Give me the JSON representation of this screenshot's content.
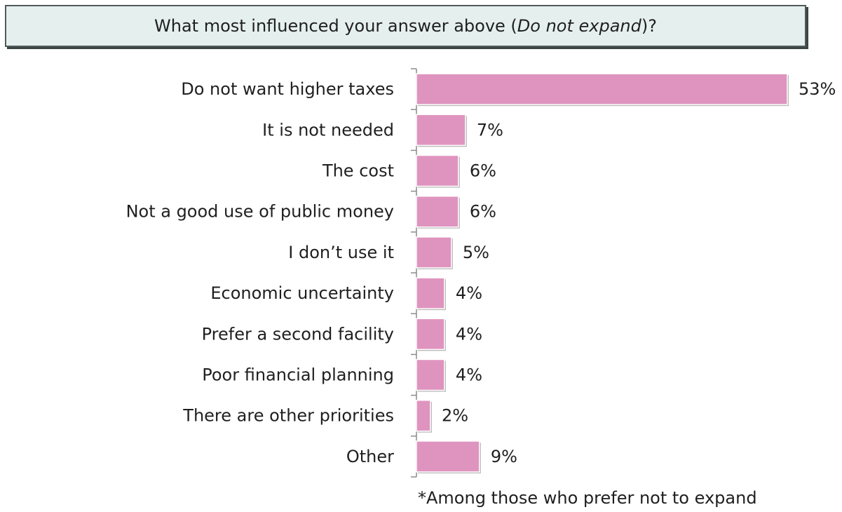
{
  "title": {
    "prefix": "What most influenced your answer above (",
    "emphasis": "Do not expand",
    "suffix": ")?"
  },
  "footnote": "*Among those who prefer not to expand",
  "chart_data": {
    "type": "bar",
    "orientation": "horizontal",
    "categories": [
      "Do not want higher taxes",
      "It is not needed",
      "The cost",
      "Not a good use of public money",
      "I don’t use it",
      "Economic uncertainty",
      "Prefer a second facility",
      "Poor financial planning",
      "There are other priorities",
      "Other"
    ],
    "values": [
      53,
      7,
      6,
      6,
      5,
      4,
      4,
      4,
      2,
      9
    ],
    "value_labels": [
      "53%",
      "7%",
      "6%",
      "6%",
      "5%",
      "4%",
      "4%",
      "4%",
      "2%",
      "9%"
    ],
    "unit": "%",
    "bar_color": "#df94bf",
    "grid": false,
    "legend": "none"
  }
}
